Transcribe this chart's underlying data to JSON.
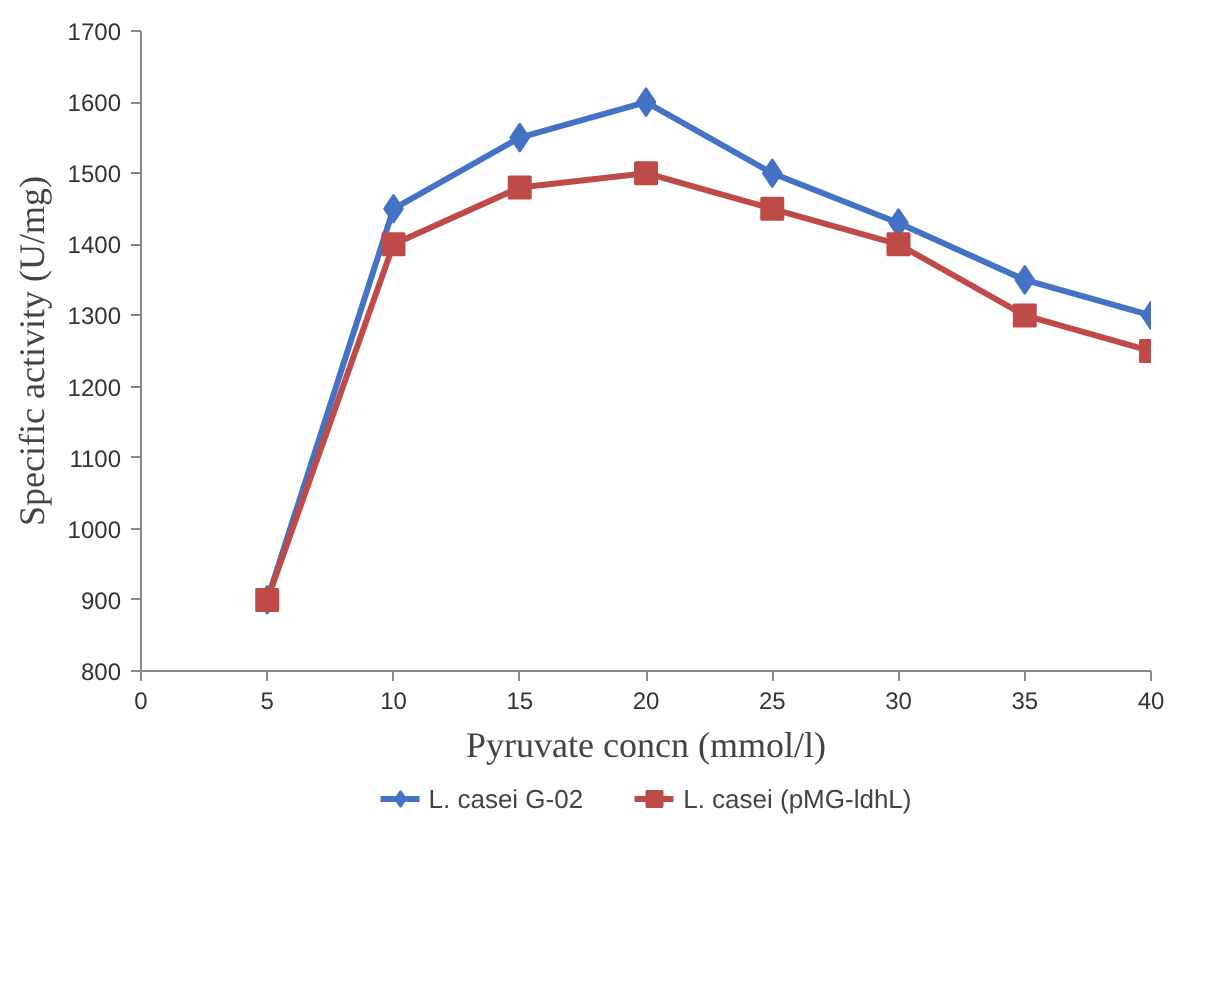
{
  "chart_data": {
    "type": "line",
    "xlabel": "Pyruvate concn (mmol/l)",
    "ylabel": "Specific activity (U/mg)",
    "x": [
      5,
      10,
      15,
      20,
      25,
      30,
      35,
      40
    ],
    "series": [
      {
        "name": "L. casei G-02",
        "color": "#4472c4",
        "marker": "diamond",
        "values": [
          900,
          1450,
          1550,
          1600,
          1500,
          1430,
          1350,
          1300
        ]
      },
      {
        "name": "L. casei (pMG-ldhL)",
        "color": "#be4b48",
        "marker": "square",
        "values": [
          900,
          1400,
          1480,
          1500,
          1450,
          1400,
          1300,
          1250
        ]
      }
    ],
    "xlim": [
      0,
      40
    ],
    "xticks": [
      0,
      5,
      10,
      15,
      20,
      25,
      30,
      35,
      40
    ],
    "ylim": [
      800,
      1700
    ],
    "yticks": [
      800,
      900,
      1000,
      1100,
      1200,
      1300,
      1400,
      1500,
      1600,
      1700
    ],
    "grid": false,
    "legend": "bottom"
  }
}
